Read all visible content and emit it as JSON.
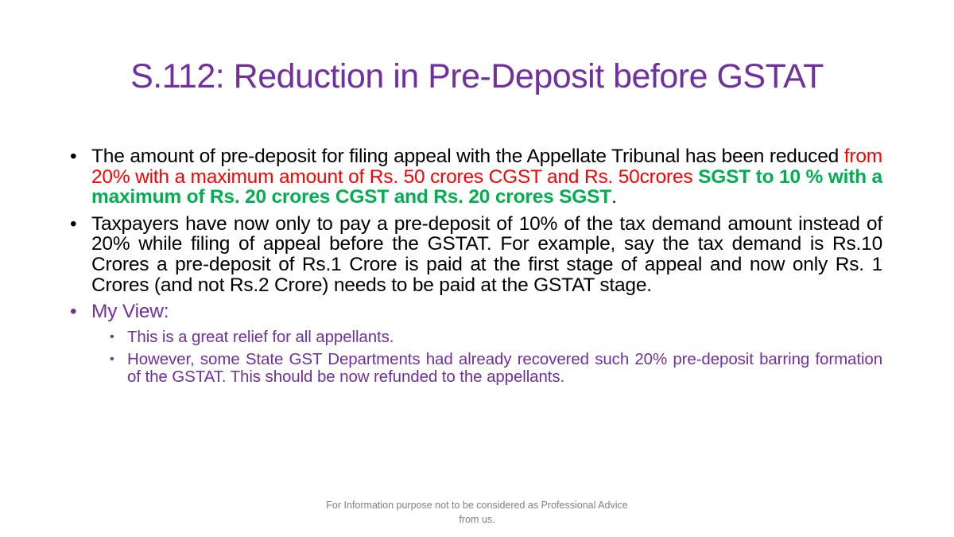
{
  "title": "S.112: Reduction in Pre-Deposit before GSTAT",
  "colors": {
    "title": "#7030A0",
    "red": "#FF0000",
    "green": "#00B050",
    "purple": "#7030A0",
    "footer": "#808080"
  },
  "bullets": [
    {
      "black": "The amount of pre-deposit for filing appeal with the Appellate Tribunal has been reduced ",
      "red": "from 20% with a maximum amount of Rs. 50 crores CGST and Rs. 50crores ",
      "green": "SGST to 10 % with a maximum of Rs. 20 crores CGST and Rs. 20 crores SGST",
      "end": "."
    },
    {
      "text": "Taxpayers have now only to pay a pre-deposit of 10% of the tax demand amount instead of 20% while filing of appeal before the GSTAT. For example, say the tax demand is Rs.10 Crores a pre-deposit of Rs.1 Crore is paid at the first stage of appeal and now only Rs. 1 Crores (and not Rs.2 Crore) needs to be paid at the GSTAT stage."
    },
    {
      "text": "My View:",
      "sub": [
        "This is a great relief for all appellants.",
        "However, some State GST Departments had already recovered such 20% pre-deposit barring formation of the GSTAT. This should be now refunded to the appellants."
      ]
    }
  ],
  "footer": "For Information purpose not to be considered as Professional Advice from us."
}
